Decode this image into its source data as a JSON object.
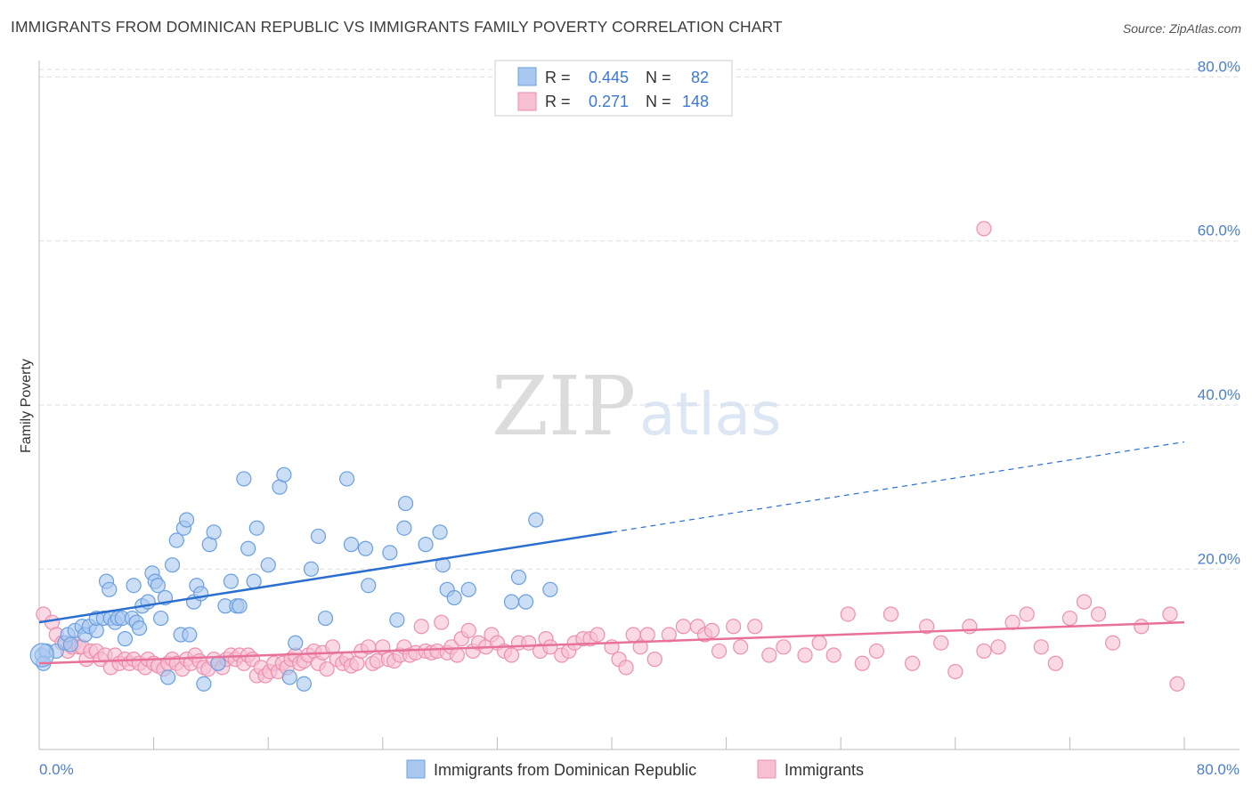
{
  "title": "IMMIGRANTS FROM DOMINICAN REPUBLIC VS IMMIGRANTS FAMILY POVERTY CORRELATION CHART",
  "source": "Source: ZipAtlas.com",
  "watermark": {
    "zip": "ZIP",
    "atlas": "atlas"
  },
  "colors": {
    "blue_fill": "#a9c8f0",
    "blue_stroke": "#6a9fe0",
    "blue_line": "#2a6fd0",
    "pink_fill": "#f7bfd2",
    "pink_stroke": "#ee8fb0",
    "pink_line": "#e8719a",
    "grid": "#dddddd",
    "axis_label": "#4a7fd0"
  },
  "legend": {
    "rows": [
      {
        "r_label": "R =",
        "r_value": "0.445",
        "n_label": "N =",
        "n_value": "82"
      },
      {
        "r_label": "R =",
        "r_value": "0.271",
        "n_label": "N =",
        "n_value": "148"
      }
    ]
  },
  "bottom_legend": [
    "Immigrants from Dominican Republic",
    "Immigrants"
  ],
  "chart_data": {
    "type": "scatter",
    "title": "IMMIGRANTS FROM DOMINICAN REPUBLIC VS IMMIGRANTS FAMILY POVERTY CORRELATION CHART",
    "xlabel": "",
    "ylabel": "Family Poverty",
    "xlim": [
      0,
      80
    ],
    "ylim": [
      -2,
      82
    ],
    "x_tick_labels": [
      "0.0%",
      "80.0%"
    ],
    "y_ticks": [
      20,
      40,
      60,
      80
    ],
    "y_tick_labels": [
      "20.0%",
      "40.0%",
      "60.0%",
      "80.0%"
    ],
    "grid": true,
    "legend_position": "top-center",
    "series": [
      {
        "name": "Immigrants from Dominican Republic",
        "R": 0.445,
        "N": 82,
        "trend": {
          "x0": 0,
          "y0": 13.5,
          "x1": 40,
          "y1": 24.5,
          "dashed_to_x": 80,
          "dashed_to_y": 35.5
        },
        "points": [
          [
            0.2,
            9.5
          ],
          [
            0.5,
            10
          ],
          [
            1.2,
            10
          ],
          [
            1.8,
            11
          ],
          [
            2,
            12
          ],
          [
            2.2,
            10.8
          ],
          [
            2.5,
            12.5
          ],
          [
            3,
            13
          ],
          [
            3.2,
            12
          ],
          [
            3.5,
            13
          ],
          [
            4,
            12.5
          ],
          [
            4,
            14
          ],
          [
            4.5,
            14
          ],
          [
            4.7,
            18.5
          ],
          [
            4.9,
            17.5
          ],
          [
            5,
            14
          ],
          [
            5.3,
            13.5
          ],
          [
            5.5,
            14
          ],
          [
            5.8,
            14
          ],
          [
            6,
            11.5
          ],
          [
            6.5,
            14
          ],
          [
            6.6,
            18
          ],
          [
            6.8,
            13.5
          ],
          [
            7,
            12.8
          ],
          [
            7.2,
            15.5
          ],
          [
            7.6,
            16
          ],
          [
            7.9,
            19.5
          ],
          [
            8.1,
            18.5
          ],
          [
            8.3,
            18
          ],
          [
            8.5,
            14
          ],
          [
            8.8,
            16.5
          ],
          [
            9,
            6.8
          ],
          [
            9.3,
            20.5
          ],
          [
            9.6,
            23.5
          ],
          [
            9.9,
            12
          ],
          [
            10.1,
            25
          ],
          [
            10.3,
            26
          ],
          [
            10.5,
            12
          ],
          [
            10.8,
            16
          ],
          [
            11,
            18
          ],
          [
            11.3,
            17
          ],
          [
            11.5,
            6
          ],
          [
            11.9,
            23
          ],
          [
            12.2,
            24.5
          ],
          [
            12.5,
            8.5
          ],
          [
            13,
            15.5
          ],
          [
            13.4,
            18.5
          ],
          [
            13.8,
            15.5
          ],
          [
            14,
            15.5
          ],
          [
            14.3,
            31
          ],
          [
            14.6,
            22.5
          ],
          [
            15,
            18.5
          ],
          [
            15.2,
            25
          ],
          [
            16,
            20.5
          ],
          [
            16.8,
            30
          ],
          [
            17.1,
            31.5
          ],
          [
            17.5,
            6.8
          ],
          [
            17.9,
            11
          ],
          [
            18.5,
            6
          ],
          [
            19,
            20
          ],
          [
            19.5,
            24
          ],
          [
            20,
            14
          ],
          [
            21.5,
            31
          ],
          [
            21.8,
            23
          ],
          [
            22.8,
            22.5
          ],
          [
            23,
            18
          ],
          [
            24.5,
            22
          ],
          [
            25,
            13.8
          ],
          [
            25.5,
            25
          ],
          [
            25.6,
            28
          ],
          [
            27,
            23
          ],
          [
            28,
            24.5
          ],
          [
            28.2,
            20.5
          ],
          [
            28.5,
            17.5
          ],
          [
            29,
            16.5
          ],
          [
            30,
            17.5
          ],
          [
            33,
            16
          ],
          [
            33.5,
            19
          ],
          [
            34,
            16
          ],
          [
            34.7,
            26
          ],
          [
            35.7,
            17.5
          ],
          [
            0.3,
            8.5
          ]
        ]
      },
      {
        "name": "Immigrants",
        "R": 0.271,
        "N": 148,
        "trend": {
          "x0": 0,
          "y0": 8.5,
          "x1": 80,
          "y1": 13.5
        },
        "points": [
          [
            0.3,
            14.5
          ],
          [
            0.9,
            13.5
          ],
          [
            1.2,
            12
          ],
          [
            1.6,
            11
          ],
          [
            2,
            10
          ],
          [
            2.3,
            10.5
          ],
          [
            2.5,
            11
          ],
          [
            2.8,
            10.5
          ],
          [
            3,
            10.5
          ],
          [
            3.3,
            9
          ],
          [
            3.6,
            10
          ],
          [
            4,
            10
          ],
          [
            4.3,
            9
          ],
          [
            4.6,
            9.5
          ],
          [
            5,
            8
          ],
          [
            5.3,
            9.5
          ],
          [
            5.6,
            8.5
          ],
          [
            6,
            9
          ],
          [
            6.3,
            8.5
          ],
          [
            6.6,
            9
          ],
          [
            7,
            8.5
          ],
          [
            7.4,
            8
          ],
          [
            7.6,
            9
          ],
          [
            8,
            8.5
          ],
          [
            8.3,
            8.2
          ],
          [
            8.7,
            7.8
          ],
          [
            9,
            8.5
          ],
          [
            9.3,
            9
          ],
          [
            9.6,
            8.5
          ],
          [
            10,
            7.8
          ],
          [
            10.3,
            9
          ],
          [
            10.6,
            8.5
          ],
          [
            10.9,
            9.5
          ],
          [
            11.2,
            8.8
          ],
          [
            11.5,
            8
          ],
          [
            11.8,
            7.8
          ],
          [
            12.2,
            9
          ],
          [
            12.5,
            8.5
          ],
          [
            12.8,
            8
          ],
          [
            13.1,
            9
          ],
          [
            13.4,
            9.5
          ],
          [
            13.7,
            9
          ],
          [
            14,
            9.5
          ],
          [
            14.3,
            8.5
          ],
          [
            14.6,
            9.5
          ],
          [
            14.9,
            9
          ],
          [
            15.2,
            7
          ],
          [
            15.5,
            8
          ],
          [
            15.8,
            7
          ],
          [
            16.1,
            7.5
          ],
          [
            16.4,
            8.5
          ],
          [
            16.7,
            7.5
          ],
          [
            17,
            8.5
          ],
          [
            17.3,
            8
          ],
          [
            17.6,
            9
          ],
          [
            17.9,
            9.5
          ],
          [
            18.2,
            8.5
          ],
          [
            18.5,
            8.8
          ],
          [
            18.8,
            9.5
          ],
          [
            19.2,
            10
          ],
          [
            19.5,
            8.5
          ],
          [
            19.8,
            9.8
          ],
          [
            20.1,
            7.8
          ],
          [
            20.5,
            10.5
          ],
          [
            20.8,
            9
          ],
          [
            21.2,
            8.5
          ],
          [
            21.5,
            9
          ],
          [
            21.8,
            8.2
          ],
          [
            22.2,
            8.5
          ],
          [
            22.5,
            10
          ],
          [
            23,
            10.5
          ],
          [
            23.3,
            8.5
          ],
          [
            23.6,
            8.8
          ],
          [
            24,
            10.5
          ],
          [
            24.4,
            9
          ],
          [
            24.8,
            8.8
          ],
          [
            25.2,
            9.5
          ],
          [
            25.5,
            10.5
          ],
          [
            25.9,
            9.5
          ],
          [
            26.3,
            9.8
          ],
          [
            26.7,
            13
          ],
          [
            27,
            10
          ],
          [
            27.4,
            9.8
          ],
          [
            27.8,
            10
          ],
          [
            28.1,
            13.5
          ],
          [
            28.5,
            9.8
          ],
          [
            28.8,
            10.5
          ],
          [
            29.2,
            9.5
          ],
          [
            29.5,
            11.5
          ],
          [
            30,
            12.5
          ],
          [
            30.3,
            10
          ],
          [
            30.7,
            11
          ],
          [
            31.2,
            10.5
          ],
          [
            31.6,
            12
          ],
          [
            32,
            11
          ],
          [
            32.5,
            10
          ],
          [
            33,
            9.5
          ],
          [
            33.5,
            11
          ],
          [
            34.2,
            11
          ],
          [
            35,
            10
          ],
          [
            35.4,
            11.5
          ],
          [
            35.7,
            10.5
          ],
          [
            36.5,
            9.5
          ],
          [
            37,
            10
          ],
          [
            37.4,
            11
          ],
          [
            38,
            11.5
          ],
          [
            38.5,
            11.5
          ],
          [
            39,
            12
          ],
          [
            40,
            10.5
          ],
          [
            40.5,
            9
          ],
          [
            41,
            8
          ],
          [
            41.5,
            12
          ],
          [
            42,
            10.5
          ],
          [
            42.5,
            12
          ],
          [
            43,
            9
          ],
          [
            44,
            12
          ],
          [
            45,
            13
          ],
          [
            46,
            13
          ],
          [
            46.5,
            12
          ],
          [
            47,
            12.5
          ],
          [
            47.5,
            10
          ],
          [
            48.5,
            13
          ],
          [
            49,
            10.5
          ],
          [
            50,
            13
          ],
          [
            51,
            9.5
          ],
          [
            52,
            10.5
          ],
          [
            53.5,
            9.5
          ],
          [
            54.5,
            11
          ],
          [
            55.5,
            9.5
          ],
          [
            56.5,
            14.5
          ],
          [
            57.5,
            8.5
          ],
          [
            58.5,
            10
          ],
          [
            59.5,
            14.5
          ],
          [
            61,
            8.5
          ],
          [
            62,
            13
          ],
          [
            63,
            11
          ],
          [
            64,
            7.5
          ],
          [
            65,
            13
          ],
          [
            66,
            10
          ],
          [
            67,
            10.5
          ],
          [
            68,
            13.5
          ],
          [
            69,
            14.5
          ],
          [
            70,
            10.5
          ],
          [
            71,
            8.5
          ],
          [
            72,
            14
          ],
          [
            73,
            16
          ],
          [
            74,
            14.5
          ],
          [
            75,
            11
          ],
          [
            77,
            13
          ],
          [
            79,
            14.5
          ],
          [
            79.5,
            6
          ],
          [
            66,
            61.5
          ]
        ]
      }
    ]
  }
}
